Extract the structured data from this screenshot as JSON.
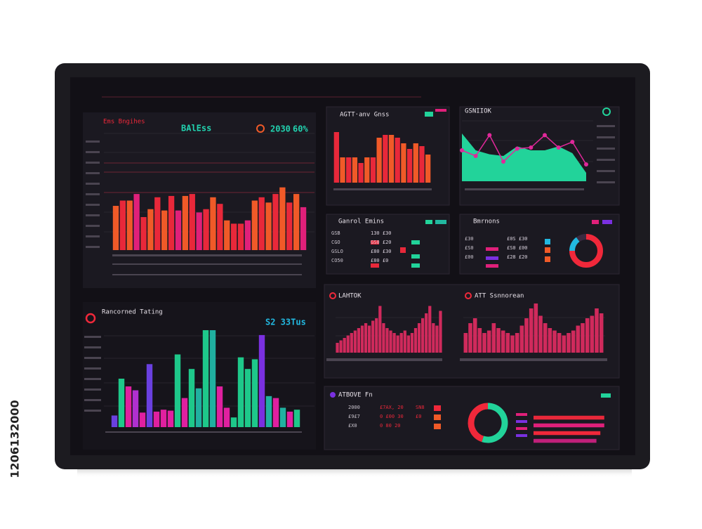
{
  "watermark": "1206132000",
  "chart_data": [
    {
      "type": "bar",
      "title": "BAlEss",
      "subtitle": "Ems Bngihes",
      "annotations": [
        "2030",
        "60%"
      ],
      "ylim": [
        0,
        100
      ],
      "values": [
        67,
        75,
        75,
        85,
        50,
        62,
        80,
        60,
        82,
        60,
        82,
        85,
        57,
        62,
        80,
        70,
        45,
        40,
        40,
        45,
        75,
        80,
        72,
        85,
        95,
        72,
        85,
        65
      ],
      "colors": [
        "#f05a28",
        "#e8283a",
        "#f05a28",
        "#e0207a",
        "#e8283a",
        "#f05a28",
        "#e8283a",
        "#f05a28",
        "#e8283a",
        "#e0207a",
        "#f05a28",
        "#e8283a",
        "#e0207a",
        "#e8283a",
        "#f05a28",
        "#e8283a",
        "#f05a28",
        "#e8283a",
        "#e8283a",
        "#e0207a",
        "#f05a28",
        "#e8283a",
        "#f05a28",
        "#e8283a",
        "#f05a28",
        "#e8283a",
        "#f05a28",
        "#e0207a"
      ]
    },
    {
      "type": "bar",
      "title": "AGTT·anv Gnss",
      "ylim": [
        0,
        100
      ],
      "values": [
        90,
        45,
        45,
        45,
        35,
        45,
        45,
        80,
        85,
        85,
        80,
        70,
        60,
        70,
        65,
        50
      ],
      "colors": [
        "#e8283a",
        "#f05a28",
        "#e8283a",
        "#f05a28",
        "#e8283a",
        "#f05a28",
        "#e8283a",
        "#f05a28",
        "#e8283a",
        "#f05a28",
        "#e8283a",
        "#f05a28",
        "#e8283a",
        "#f05a28",
        "#e8283a",
        "#f05a28"
      ]
    },
    {
      "type": "line",
      "title": "GSNIIOK",
      "ylim": [
        0,
        100
      ],
      "series": [
        {
          "color": "#22d39a",
          "fill": true,
          "values": [
            85,
            55,
            48,
            45,
            62,
            55,
            55,
            62,
            50,
            15
          ]
        },
        {
          "color": "#e0289a",
          "fill": false,
          "values": [
            55,
            45,
            82,
            35,
            58,
            60,
            82,
            60,
            70,
            30
          ]
        }
      ]
    },
    {
      "type": "pie",
      "title": "Bmrnons",
      "values": [
        75,
        15,
        10
      ],
      "colors": [
        "#f0283a",
        "#22b8e0",
        "#3a2a40"
      ]
    },
    {
      "type": "bar",
      "title": "Rancorned Tating",
      "annotations": [
        "S2 33Tus"
      ],
      "ylim": [
        0,
        100
      ],
      "values": [
        12,
        50,
        42,
        38,
        15,
        65,
        16,
        18,
        17,
        75,
        30,
        60,
        40,
        100,
        100,
        42,
        20,
        10,
        72,
        60,
        70,
        95,
        32,
        30,
        20,
        16,
        18
      ],
      "colors": [
        "#6a40e0",
        "#1ec88a",
        "#e020a0",
        "#b030d0",
        "#e020a0",
        "#6a40e0",
        "#e020a0",
        "#e020a0",
        "#e020a0",
        "#1ec88a",
        "#e020a0",
        "#1ec88a",
        "#20b0a0",
        "#1ec88a",
        "#20b0a0",
        "#e020a0",
        "#e020a0",
        "#1ec88a",
        "#1ec88a",
        "#1ec88a",
        "#1ec88a",
        "#7a30e0",
        "#20b0a0",
        "#e020a0",
        "#20b0a0",
        "#e020a0",
        "#1ec88a"
      ]
    },
    {
      "type": "bar",
      "title": "LAHTOK",
      "ylim": [
        0,
        100
      ],
      "values": [
        20,
        25,
        30,
        35,
        40,
        45,
        50,
        55,
        60,
        55,
        65,
        70,
        95,
        60,
        50,
        45,
        40,
        35,
        40,
        45,
        35,
        40,
        50,
        60,
        70,
        80,
        95,
        60,
        55,
        85
      ],
      "colors": [
        "#d02a5c"
      ]
    },
    {
      "type": "bar",
      "title": "ATT Ssnnorean",
      "ylim": [
        0,
        100
      ],
      "values": [
        40,
        60,
        70,
        50,
        40,
        45,
        60,
        50,
        45,
        40,
        35,
        40,
        55,
        70,
        90,
        100,
        75,
        60,
        50,
        45,
        40,
        35,
        40,
        45,
        55,
        60,
        70,
        75,
        90,
        80
      ],
      "colors": [
        "#d02a5c"
      ]
    },
    {
      "type": "pie",
      "title": "ATBOVE Fn",
      "values": [
        55,
        45
      ],
      "colors": [
        "#22d39a",
        "#f0283a"
      ]
    },
    {
      "type": "hbar",
      "xlim": [
        0,
        100
      ],
      "values": [
        90,
        90,
        85,
        80
      ],
      "colors": [
        "#e8283a",
        "#e0207a",
        "#f0283a",
        "#c0207a"
      ]
    }
  ],
  "tables": [
    {
      "title": "Ganrol Emins",
      "rows": [
        [
          "GSB",
          "130 £30"
        ],
        [
          "CGO",
          "GS0 £20"
        ],
        [
          "GSLO",
          "£80 £30"
        ],
        [
          "CO50",
          "£80 £0"
        ]
      ]
    },
    {
      "rows": [
        [
          "£30",
          "£0S £30"
        ],
        [
          "£S0",
          "£S0 £00"
        ],
        [
          "£00",
          "£28 £20"
        ]
      ]
    },
    {
      "rows": [
        [
          "2000",
          "£7AX, 20",
          "SN8"
        ],
        [
          "£9£7",
          "0 £00 30",
          "£0"
        ],
        [
          "£X0",
          "0 80 20",
          ""
        ]
      ]
    }
  ]
}
